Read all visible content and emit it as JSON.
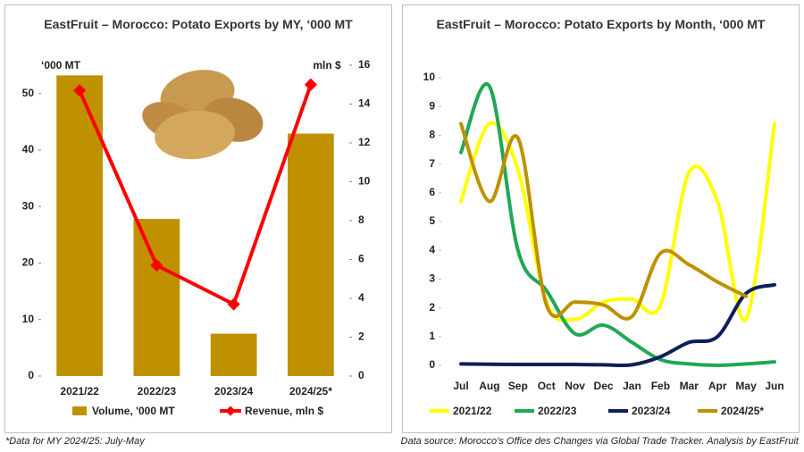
{
  "chart_data": [
    {
      "type": "bar",
      "title": "EastFruit – Morocco: Potato Exports by MY, ‘000 MT",
      "y_label": "‘000 MT",
      "y2_label": "mln $",
      "categories": [
        "2021/22",
        "2022/23",
        "2023/24",
        "2024/25*"
      ],
      "series": [
        {
          "name": "Volume, '000 MT",
          "type": "bar",
          "color": "#bf9000",
          "values": [
            53.2,
            27.8,
            7.5,
            42.9
          ]
        },
        {
          "name": "Revenue, mln $",
          "type": "line",
          "axis": "y2",
          "color": "#ff0000",
          "values": [
            14.7,
            5.7,
            3.7,
            15.0
          ]
        }
      ],
      "ylim": [
        0,
        55
      ],
      "yticks": [
        0,
        10,
        20,
        30,
        40,
        50
      ],
      "y2lim": [
        0,
        16
      ],
      "y2ticks": [
        0,
        2,
        4,
        6,
        8,
        10,
        12,
        14,
        16
      ]
    },
    {
      "type": "line",
      "title": "EastFruit – Morocco: Potato Exports by Month, ‘000 MT",
      "categories": [
        "Jul",
        "Aug",
        "Sep",
        "Oct",
        "Nov",
        "Dec",
        "Jan",
        "Feb",
        "Mar",
        "Apr",
        "May",
        "Jun"
      ],
      "series": [
        {
          "name": "2021/22",
          "color": "#ffff00",
          "values": [
            5.7,
            8.4,
            6.8,
            2.2,
            1.6,
            2.2,
            2.3,
            2.1,
            6.7,
            5.7,
            1.6,
            8.4
          ]
        },
        {
          "name": "2022/23",
          "color": "#1fa855",
          "values": [
            7.4,
            9.7,
            4.0,
            2.6,
            1.1,
            1.4,
            0.8,
            0.2,
            0.05,
            0.0,
            0.05,
            0.12
          ]
        },
        {
          "name": "2023/24",
          "color": "#0c1f5a",
          "values": [
            0.05,
            0.04,
            0.03,
            0.03,
            0.03,
            0.02,
            0.02,
            0.3,
            0.8,
            1.0,
            2.5,
            2.8
          ]
        },
        {
          "name": "2024/25*",
          "color": "#bf9000",
          "values": [
            8.4,
            5.7,
            7.9,
            2.1,
            2.2,
            2.1,
            1.7,
            3.9,
            3.5,
            2.9,
            2.4,
            null
          ]
        }
      ],
      "ylim": [
        0,
        10
      ],
      "yticks": [
        0,
        1,
        2,
        3,
        4,
        5,
        6,
        7,
        8,
        9,
        10
      ],
      "smooth": true
    }
  ],
  "notes": [
    "*Data for MY 2024/25: July-May",
    "Data source: Morocco’s Office des Changes via Global Trade Tracker. Analysis by EastFruit"
  ]
}
